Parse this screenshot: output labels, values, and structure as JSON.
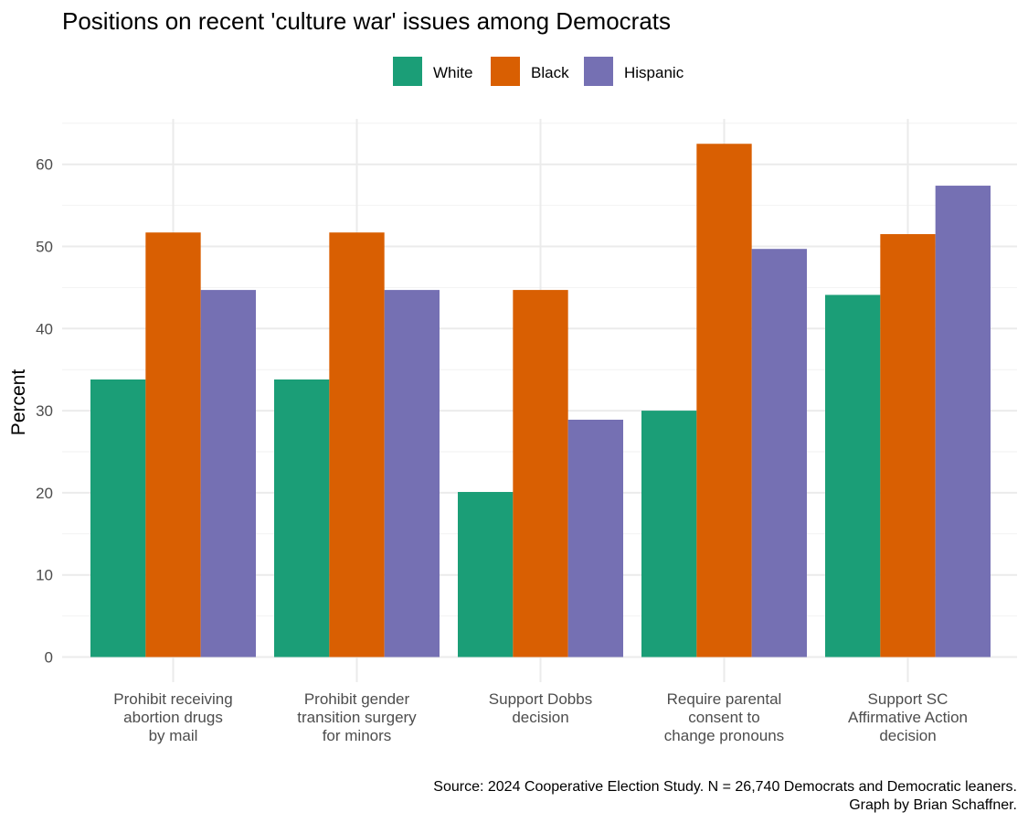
{
  "chart_data": {
    "type": "bar",
    "title": "Positions on recent 'culture war' issues among Democrats",
    "ylabel": "Percent",
    "xlabel": "",
    "ylim": [
      0,
      65
    ],
    "yticks": [
      0,
      10,
      20,
      30,
      40,
      50,
      60
    ],
    "grid": true,
    "legend_position": "top",
    "categories": [
      [
        "Prohibit receiving",
        "abortion drugs",
        "by mail"
      ],
      [
        "Prohibit gender",
        "transition surgery",
        "for minors"
      ],
      [
        "Support Dobbs",
        "decision"
      ],
      [
        "Require parental",
        "consent to",
        "change pronouns"
      ],
      [
        "Support SC",
        "Affirmative Action",
        "decision"
      ]
    ],
    "series": [
      {
        "name": "White",
        "color": "#1b9e77",
        "values": [
          33.8,
          33.8,
          20.1,
          30.0,
          44.1
        ]
      },
      {
        "name": "Black",
        "color": "#d95f02",
        "values": [
          51.7,
          51.7,
          44.7,
          62.5,
          51.5
        ]
      },
      {
        "name": "Hispanic",
        "color": "#7570b3",
        "values": [
          44.7,
          44.7,
          28.9,
          49.7,
          57.4
        ]
      }
    ],
    "caption": [
      "Source: 2024 Cooperative Election Study. N = 26,740 Democrats and Democratic leaners.",
      "Graph by Brian Schaffner."
    ]
  }
}
